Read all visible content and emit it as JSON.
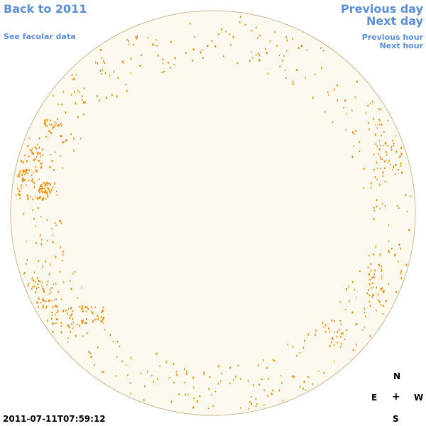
{
  "nav": {
    "back": "Back to 2011",
    "facular": "See facular data",
    "previous_day": "Previous day",
    "next_day": "Next day",
    "previous_hour": "Previous hour",
    "next_hour": "Next hour"
  },
  "timestamp": "2011-07-11T07:59:12",
  "compass": {
    "north": "N",
    "south": "S",
    "east": "E",
    "west": "W",
    "center": "+"
  },
  "colors": {
    "disk_fill": "#fdf9ee",
    "disk_border": "#c9b890",
    "faculae": "#ee8a00",
    "link": "#5b8fd9"
  }
}
